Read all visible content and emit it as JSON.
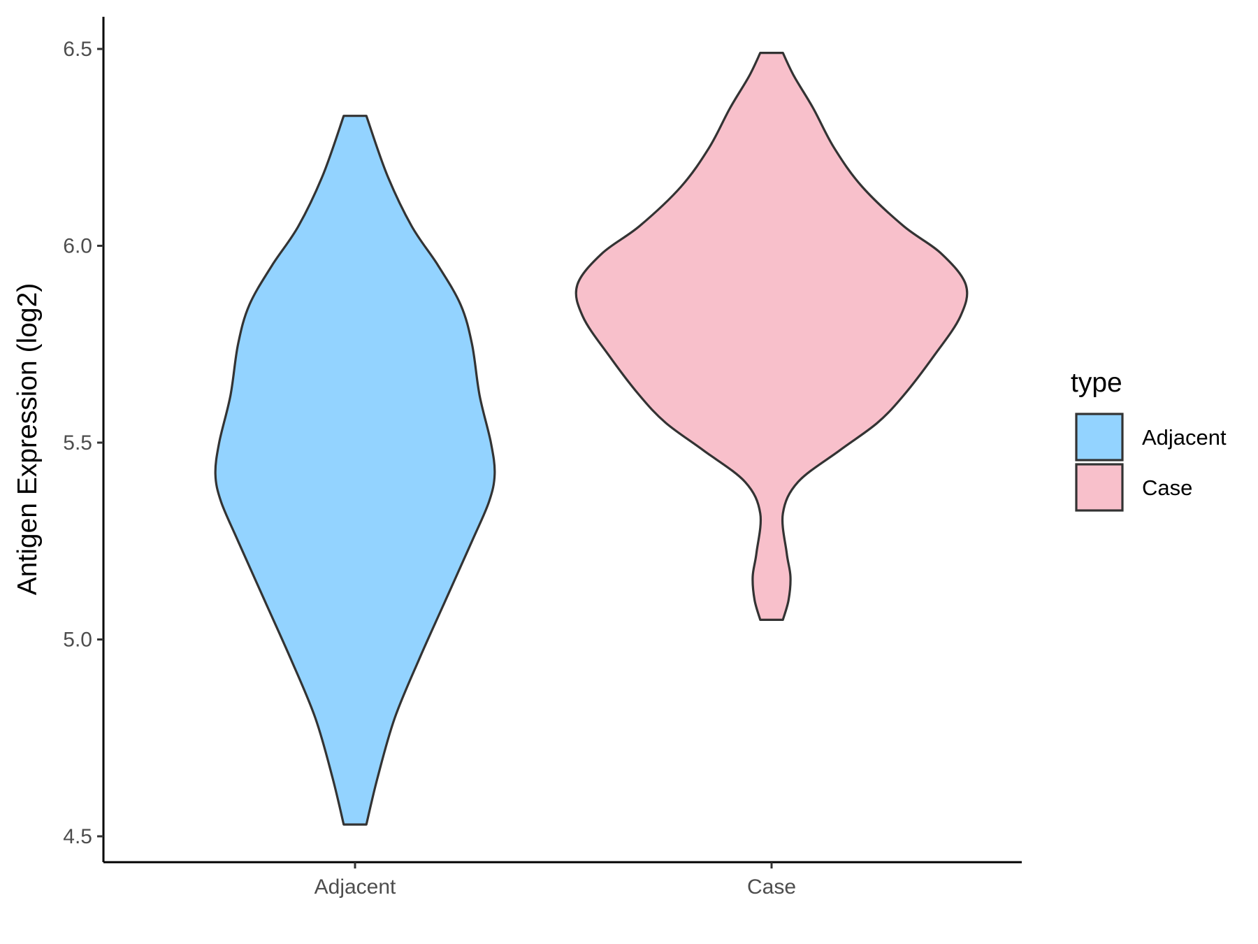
{
  "chart_data": {
    "type": "violin",
    "xlabel": "",
    "ylabel": "Antigen Expression (log2)",
    "ylim": [
      4.5,
      6.5
    ],
    "yticks": [
      "4.5",
      "5.0",
      "5.5",
      "6.0",
      "6.5"
    ],
    "categories": [
      "Adjacent",
      "Case"
    ],
    "legend": {
      "title": "type",
      "placement": "right",
      "entries": [
        "Adjacent",
        "Case"
      ]
    },
    "grid": false,
    "series": [
      {
        "name": "Adjacent",
        "color": "#93D3FF",
        "min": 4.53,
        "max": 6.33,
        "density": [
          [
            4.53,
            0.06
          ],
          [
            4.65,
            0.12
          ],
          [
            4.8,
            0.21
          ],
          [
            4.95,
            0.34
          ],
          [
            5.1,
            0.48
          ],
          [
            5.25,
            0.62
          ],
          [
            5.35,
            0.71
          ],
          [
            5.42,
            0.74
          ],
          [
            5.5,
            0.72
          ],
          [
            5.62,
            0.66
          ],
          [
            5.75,
            0.62
          ],
          [
            5.85,
            0.56
          ],
          [
            5.95,
            0.44
          ],
          [
            6.05,
            0.3
          ],
          [
            6.18,
            0.17
          ],
          [
            6.33,
            0.06
          ]
        ]
      },
      {
        "name": "Case",
        "color": "#F8C0CB",
        "min": 5.05,
        "max": 6.49,
        "density": [
          [
            5.05,
            0.06
          ],
          [
            5.1,
            0.09
          ],
          [
            5.16,
            0.1
          ],
          [
            5.22,
            0.08
          ],
          [
            5.32,
            0.06
          ],
          [
            5.4,
            0.14
          ],
          [
            5.48,
            0.36
          ],
          [
            5.55,
            0.56
          ],
          [
            5.62,
            0.7
          ],
          [
            5.72,
            0.86
          ],
          [
            5.82,
            1.0
          ],
          [
            5.9,
            1.03
          ],
          [
            5.98,
            0.9
          ],
          [
            6.05,
            0.7
          ],
          [
            6.15,
            0.48
          ],
          [
            6.25,
            0.33
          ],
          [
            6.35,
            0.22
          ],
          [
            6.43,
            0.12
          ],
          [
            6.49,
            0.06
          ]
        ]
      }
    ]
  }
}
